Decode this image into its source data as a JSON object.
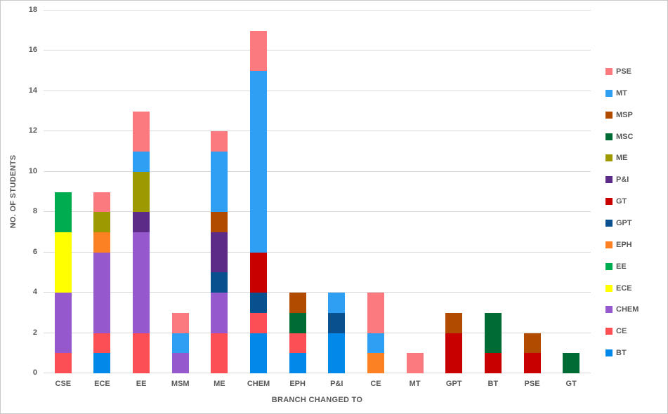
{
  "chart_data": {
    "type": "bar",
    "stacked": true,
    "title": "",
    "xlabel": "BRANCH CHANGED TO",
    "ylabel": "NO. OF STUDENTS",
    "ylim": [
      0,
      18
    ],
    "ytick_step": 2,
    "grid": true,
    "legend_position": "right",
    "categories": [
      "CSE",
      "ECE",
      "EE",
      "MSM",
      "ME",
      "CHEM",
      "EPH",
      "P&I",
      "CE",
      "MT",
      "GPT",
      "BT",
      "PSE",
      "GT"
    ],
    "series": [
      {
        "name": "BT",
        "color": "#0288e8",
        "values": [
          0,
          1,
          0,
          0,
          0,
          2,
          1,
          2,
          0,
          0,
          0,
          0,
          0,
          0
        ]
      },
      {
        "name": "CE",
        "color": "#fc4f55",
        "values": [
          1,
          1,
          2,
          0,
          2,
          1,
          1,
          0,
          0,
          0,
          0,
          0,
          0,
          0
        ]
      },
      {
        "name": "CHEM",
        "color": "#9558cd",
        "values": [
          3,
          4,
          5,
          1,
          2,
          0,
          0,
          0,
          0,
          0,
          0,
          0,
          0,
          0
        ]
      },
      {
        "name": "ECE",
        "color": "#ffff00",
        "values": [
          3,
          0,
          0,
          0,
          0,
          0,
          0,
          0,
          0,
          0,
          0,
          0,
          0,
          0
        ]
      },
      {
        "name": "EE",
        "color": "#00ac50",
        "values": [
          2,
          0,
          0,
          0,
          0,
          0,
          0,
          0,
          0,
          0,
          0,
          0,
          0,
          0
        ]
      },
      {
        "name": "EPH",
        "color": "#fc8122",
        "values": [
          0,
          1,
          0,
          0,
          0,
          0,
          0,
          0,
          1,
          0,
          0,
          0,
          0,
          0
        ]
      },
      {
        "name": "GPT",
        "color": "#09518e",
        "values": [
          0,
          0,
          0,
          0,
          1,
          1,
          0,
          1,
          0,
          0,
          0,
          0,
          0,
          0
        ]
      },
      {
        "name": "GT",
        "color": "#c80000",
        "values": [
          0,
          0,
          0,
          0,
          0,
          2,
          0,
          0,
          0,
          0,
          2,
          1,
          1,
          0
        ]
      },
      {
        "name": "P&I",
        "color": "#5b2b87",
        "values": [
          0,
          0,
          1,
          0,
          2,
          0,
          0,
          0,
          0,
          0,
          0,
          0,
          0,
          0
        ]
      },
      {
        "name": "ME",
        "color": "#9c9a00",
        "values": [
          0,
          1,
          2,
          0,
          0,
          0,
          0,
          0,
          0,
          0,
          0,
          0,
          0,
          0
        ]
      },
      {
        "name": "MSC",
        "color": "#006b35",
        "values": [
          0,
          0,
          0,
          0,
          0,
          0,
          1,
          0,
          0,
          0,
          0,
          2,
          0,
          1
        ]
      },
      {
        "name": "MSP",
        "color": "#b04b00",
        "values": [
          0,
          0,
          0,
          0,
          1,
          0,
          1,
          0,
          0,
          0,
          1,
          0,
          1,
          0
        ]
      },
      {
        "name": "MT",
        "color": "#2e9ff3",
        "values": [
          0,
          0,
          1,
          1,
          3,
          9,
          0,
          1,
          1,
          0,
          0,
          0,
          0,
          0
        ]
      },
      {
        "name": "PSE",
        "color": "#fb7a80",
        "values": [
          0,
          1,
          2,
          1,
          1,
          2,
          0,
          0,
          2,
          1,
          0,
          0,
          0,
          0
        ]
      }
    ],
    "bar_totals": [
      9,
      9,
      13,
      3,
      12,
      17,
      4,
      4,
      4,
      1,
      3,
      3,
      2,
      1
    ],
    "legend_order_top_to_bottom": [
      "PSE",
      "MT",
      "MSP",
      "MSC",
      "ME",
      "P&I",
      "GT",
      "GPT",
      "EPH",
      "EE",
      "ECE",
      "CHEM",
      "CE",
      "BT"
    ]
  },
  "colors": {
    "background": "#ffffff",
    "border": "#c9c9c9",
    "gridline": "#d9d9d9",
    "axis_text": "#595959"
  }
}
